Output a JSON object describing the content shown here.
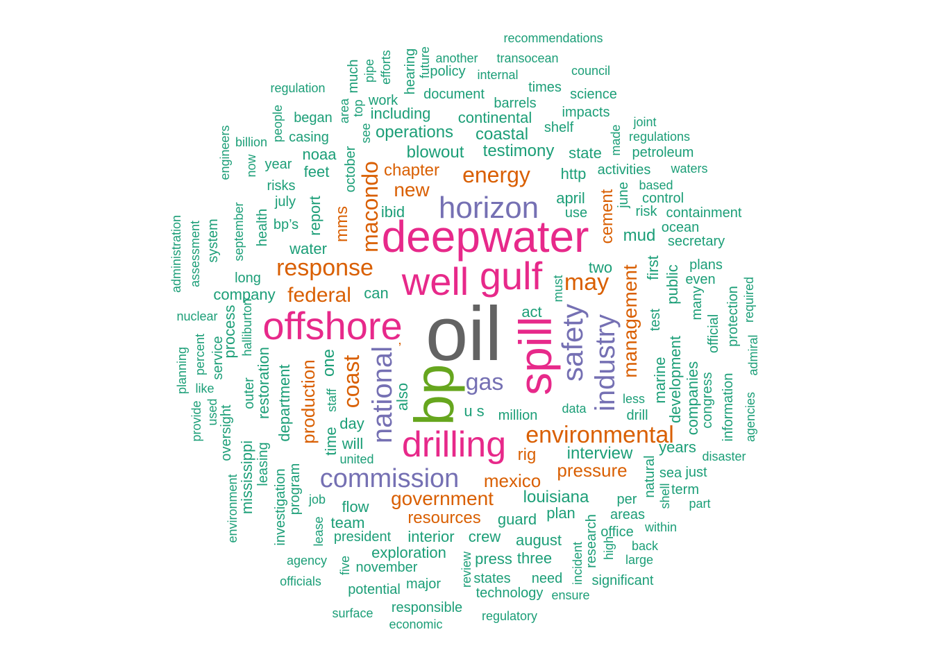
{
  "palette": {
    "c1": "#1b9e77",
    "c2": "#d95f02",
    "c3": "#7570b3",
    "c4": "#e7298a",
    "c5": "#66a61e",
    "c6": "#636363"
  },
  "words": [
    "oil",
    "bp",
    "spill",
    "deepwater",
    "well",
    "gulf",
    "offshore",
    "drilling",
    "horizon",
    "safety",
    "industry",
    "national",
    "commission",
    "environmental",
    "response",
    "may",
    "energy",
    "federal",
    "gas",
    "coast",
    "management",
    "macondo",
    "production",
    "government",
    "mexico",
    "new",
    "pressure",
    "louisiana",
    "resources",
    "interview",
    "mms",
    "chapter",
    "cement",
    "rig",
    "blowout",
    "testimony",
    "coastal",
    "continental",
    "operations",
    "including",
    "work",
    "document",
    "policy",
    "another",
    "transocean",
    "recommendations",
    "internal",
    "times",
    "council",
    "barrels",
    "science",
    "impacts",
    "shelf",
    "state",
    "regulations",
    "petroleum",
    "joint",
    "made",
    "activities",
    "waters",
    "based",
    "control",
    "containment",
    "ocean",
    "secretary",
    "risk",
    "june",
    "plans",
    "even",
    "first",
    "public",
    "test",
    "mud",
    "two",
    "april",
    "use",
    "http",
    "ibid",
    "report",
    "feet",
    "noaa",
    "casing",
    "began",
    "people",
    "area",
    "top",
    "see",
    "much",
    "pipe",
    "efforts",
    "hearing",
    "future",
    "regulation",
    "billion",
    "engineers",
    "now",
    "year",
    "risks",
    "july",
    "bp’s",
    "health",
    "september",
    "system",
    "assessment",
    "administration",
    "long",
    "company",
    "can",
    "water",
    "october",
    "also",
    "one",
    "staff",
    "u s",
    "million",
    "data",
    "act",
    "must",
    "marine",
    "development",
    "companies",
    "congress",
    "official",
    "protection",
    "required",
    "admiral",
    "agencies",
    "information",
    "disaster",
    "many",
    "less",
    "drill",
    "years",
    "sea",
    "just",
    "term",
    "shell",
    "part",
    "natural",
    "per",
    "areas",
    "within",
    "back",
    "large",
    "office",
    "high",
    "research",
    "incident",
    "significant",
    "ensure",
    "need",
    "three",
    "august",
    "crew",
    "interior",
    "plan",
    "guard",
    "flow",
    "team",
    "president",
    "exploration",
    "november",
    "press",
    "states",
    "technology",
    "review",
    "major",
    "potential",
    "five",
    "officials",
    "agency",
    "job",
    "lease",
    "program",
    "investigation",
    "environment",
    "mississippi",
    "leasing",
    "outer",
    "halliburton",
    "restoration",
    "department",
    "time",
    "day",
    "will",
    "united",
    "nuclear",
    "process",
    "service",
    "percent",
    "planning",
    "like",
    "used",
    "provide",
    "oversight",
    "surface",
    "responsible",
    "economic",
    "regulatory",
    "’"
  ]
}
